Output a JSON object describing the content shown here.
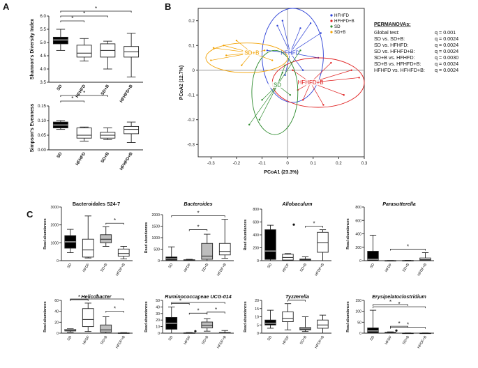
{
  "panel_letters": {
    "a": "A",
    "b": "B",
    "c": "C"
  },
  "permanova": {
    "title": "PERMANOVAs:",
    "rows": [
      {
        "label": "Global test:",
        "q": "q = 0.001"
      },
      {
        "label": "SD vs. SD+B:",
        "q": "q = 0.0024"
      },
      {
        "label": "SD vs. HFHFD:",
        "q": "q = 0.0024"
      },
      {
        "label": "SD vs. HFHFD+B:",
        "q": "q = 0.0024"
      },
      {
        "label": "SD+B vs. HFHFD:",
        "q": "q = 0.0030"
      },
      {
        "label": "SD+B vs. HFHFD+B:",
        "q": "q = 0.0024"
      },
      {
        "label": "HFHFD vs. HFHFD+B:",
        "q": "q = 0.0024"
      }
    ]
  },
  "colors": {
    "SD": "#2e8b2e",
    "SD+B": "#f2a100",
    "HFHFD": "#2a3fd6",
    "HFHFD+B": "#e02020",
    "dark": "#000000",
    "grey": "#bdbdbd",
    "white": "#ffffff"
  },
  "chart_data": [
    {
      "id": "shannon",
      "type": "box",
      "panel": "A",
      "categories": [
        "SD",
        "HFHFD",
        "SD+B",
        "HFHFD+B"
      ],
      "ylabel": "Shannon's Diversity Index",
      "xlabel": "",
      "ylim": [
        3.5,
        6.0
      ],
      "yticks": [
        "3.5",
        "4.0",
        "4.5",
        "5.0",
        "5.5",
        "6.0"
      ],
      "ytick_values": [
        3.5,
        4.0,
        4.5,
        5.0,
        5.5,
        6.0
      ],
      "fills": [
        "#000000",
        "#ffffff",
        "#ffffff",
        "#ffffff"
      ],
      "boxes": [
        {
          "min": 4.7,
          "q1": 4.95,
          "med": 5.1,
          "q3": 5.2,
          "max": 5.5
        },
        {
          "min": 4.3,
          "q1": 4.45,
          "med": 4.6,
          "q3": 4.9,
          "max": 5.15
        },
        {
          "min": 4.0,
          "q1": 4.45,
          "med": 4.7,
          "q3": 4.95,
          "max": 5.05
        },
        {
          "min": 3.7,
          "q1": 4.45,
          "med": 4.65,
          "q3": 4.85,
          "max": 5.35
        }
      ],
      "significance": [
        {
          "from": 0,
          "to": 1,
          "label": "*"
        },
        {
          "from": 0,
          "to": 2,
          "label": "*"
        },
        {
          "from": 0,
          "to": 3,
          "label": "*"
        }
      ]
    },
    {
      "id": "simpson",
      "type": "box",
      "panel": "A",
      "categories": [
        "SD",
        "HFHFD",
        "SD+B",
        "HFHFD+B"
      ],
      "ylabel": "Simpson's Evenness",
      "xlabel": "",
      "ylim": [
        0.0,
        0.15
      ],
      "yticks": [
        "0.00",
        "0.05",
        "0.10",
        "0.15"
      ],
      "ytick_values": [
        0.0,
        0.05,
        0.1,
        0.15
      ],
      "fills": [
        "#000000",
        "#ffffff",
        "#ffffff",
        "#ffffff"
      ],
      "boxes": [
        {
          "min": 0.07,
          "q1": 0.075,
          "med": 0.085,
          "q3": 0.095,
          "max": 0.1
        },
        {
          "min": 0.03,
          "q1": 0.04,
          "med": 0.05,
          "q3": 0.075,
          "max": 0.078
        },
        {
          "min": 0.035,
          "q1": 0.04,
          "med": 0.05,
          "q3": 0.06,
          "max": 0.075
        },
        {
          "min": 0.025,
          "q1": 0.055,
          "med": 0.07,
          "q3": 0.08,
          "max": 0.095
        }
      ],
      "significance": [
        {
          "from": 0,
          "to": 1,
          "label": "*"
        },
        {
          "from": 0,
          "to": 2,
          "label": "*"
        }
      ]
    },
    {
      "id": "pcoa",
      "type": "scatter",
      "panel": "B",
      "title": "",
      "xlabel": "PCoA1 (23.3%)",
      "ylabel": "PCoA2 (12.7%)",
      "xlim": [
        -0.35,
        0.3
      ],
      "ylim": [
        -0.35,
        0.25
      ],
      "xticks": [
        "-0.3",
        "-0.2",
        "-0.1",
        "0",
        "0.1",
        "0.2",
        "0.3"
      ],
      "xtick_values": [
        -0.3,
        -0.2,
        -0.1,
        0,
        0.1,
        0.2,
        0.3
      ],
      "yticks": [
        "-0.3",
        "-0.2",
        "-0.1",
        "0",
        "0.1",
        "0.2"
      ],
      "ytick_values": [
        -0.3,
        -0.2,
        -0.1,
        0,
        0.1,
        0.2
      ],
      "legend": [
        "HFHFD",
        "HFHFD+B",
        "SD",
        "SD+B"
      ],
      "series": [
        {
          "name": "HFHFD",
          "color": "#2a3fd6",
          "centroid": [
            0.01,
            0.07
          ],
          "ellipse": {
            "rx": 0.12,
            "ry": 0.19,
            "cx": 0.02,
            "cy": 0.06
          },
          "points": [
            [
              -0.04,
              0.18
            ],
            [
              -0.02,
              0.2
            ],
            [
              0.05,
              0.17
            ],
            [
              0.09,
              0.19
            ],
            [
              0.13,
              0.15
            ],
            [
              -0.08,
              0.08
            ],
            [
              0.06,
              0.0
            ],
            [
              -0.01,
              -0.02
            ],
            [
              0.12,
              0.05
            ]
          ]
        },
        {
          "name": "HFHFD+B",
          "color": "#e02020",
          "centroid": [
            0.09,
            -0.05
          ],
          "ellipse": {
            "rx": 0.18,
            "ry": 0.1,
            "cx": 0.12,
            "cy": -0.05
          },
          "points": [
            [
              0.02,
              0.0
            ],
            [
              0.06,
              -0.12
            ],
            [
              0.14,
              -0.14
            ],
            [
              0.25,
              0.0
            ],
            [
              0.28,
              -0.03
            ],
            [
              0.22,
              -0.1
            ],
            [
              0.17,
              0.03
            ],
            [
              0.04,
              -0.08
            ]
          ]
        },
        {
          "name": "SD",
          "color": "#2e8b2e",
          "centroid": [
            -0.04,
            -0.06
          ],
          "ellipse": {
            "rx": 0.09,
            "ry": 0.17,
            "cx": -0.05,
            "cy": -0.09
          },
          "points": [
            [
              -0.15,
              -0.22
            ],
            [
              -0.1,
              -0.12
            ],
            [
              -0.11,
              -0.2
            ],
            [
              -0.02,
              -0.01
            ],
            [
              -0.01,
              0.02
            ],
            [
              0.05,
              0.08
            ],
            [
              0.01,
              -0.1
            ]
          ]
        },
        {
          "name": "SD+B",
          "color": "#f2a100",
          "centroid": [
            -0.14,
            0.07
          ],
          "ellipse": {
            "rx": 0.16,
            "ry": 0.06,
            "cx": -0.16,
            "cy": 0.05
          },
          "points": [
            [
              -0.3,
              0.04
            ],
            [
              -0.29,
              0.09
            ],
            [
              -0.25,
              0.1
            ],
            [
              -0.2,
              0.12
            ],
            [
              -0.09,
              0.08
            ],
            [
              -0.06,
              0.04
            ],
            [
              -0.18,
              0.02
            ],
            [
              -0.24,
              0.06
            ]
          ]
        }
      ]
    },
    {
      "id": "bacteroidales",
      "type": "box",
      "panel": "C",
      "title": "Bacteroidales S24-7",
      "title_style": "normal",
      "categories": [
        "SD",
        "HFDF",
        "SD+B",
        "HFDF+B"
      ],
      "ylabel": "Read abundances",
      "ylim": [
        0,
        3000
      ],
      "yticks": [
        "0",
        "1000",
        "2000",
        "3000"
      ],
      "ytick_values": [
        0,
        1000,
        2000,
        3000
      ],
      "fills": [
        "#000000",
        "#ffffff",
        "#bdbdbd",
        "#ffffff"
      ],
      "boxes": [
        {
          "min": 450,
          "q1": 700,
          "med": 1050,
          "q3": 1400,
          "max": 1750
        },
        {
          "min": 150,
          "q1": 200,
          "med": 600,
          "q3": 1200,
          "max": 2500
        },
        {
          "min": 800,
          "q1": 1000,
          "med": 1200,
          "q3": 1450,
          "max": 1900
        },
        {
          "min": 100,
          "q1": 250,
          "med": 400,
          "q3": 650,
          "max": 800
        }
      ],
      "outliers": [],
      "significance": [
        {
          "from": 2,
          "to": 3,
          "label": "*"
        }
      ]
    },
    {
      "id": "bacteroides",
      "type": "box",
      "panel": "C",
      "title": "Bacteroides",
      "title_style": "italic",
      "categories": [
        "SD",
        "HFDF",
        "SD+B",
        "HFDF+B"
      ],
      "ylabel": "Read abundances",
      "ylim": [
        0,
        2000
      ],
      "yticks": [
        "0",
        "500",
        "1000",
        "1500",
        "2000"
      ],
      "ytick_values": [
        0,
        500,
        1000,
        1500,
        2000
      ],
      "fills": [
        "#000000",
        "#ffffff",
        "#bdbdbd",
        "#ffffff"
      ],
      "boxes": [
        {
          "min": 0,
          "q1": 30,
          "med": 80,
          "q3": 160,
          "max": 600
        },
        {
          "min": 0,
          "q1": 10,
          "med": 25,
          "q3": 40,
          "max": 60
        },
        {
          "min": 0,
          "q1": 60,
          "med": 200,
          "q3": 750,
          "max": 1150
        },
        {
          "min": 100,
          "q1": 250,
          "med": 400,
          "q3": 750,
          "max": 1800
        }
      ],
      "outliers": [],
      "significance": [
        {
          "from": 0,
          "to": 3,
          "label": "*"
        },
        {
          "from": 1,
          "to": 2,
          "label": "*"
        }
      ]
    },
    {
      "id": "allobaculum",
      "type": "box",
      "panel": "C",
      "title": "Allobaculum",
      "title_style": "italic",
      "categories": [
        "SD",
        "HFDF",
        "SD+B",
        "HFDF+B"
      ],
      "ylabel": "Read abundances",
      "ylim": [
        0,
        800
      ],
      "yticks": [
        "0",
        "200",
        "400",
        "600",
        "800"
      ],
      "ytick_values": [
        0,
        200,
        400,
        600,
        800
      ],
      "fills": [
        "#000000",
        "#ffffff",
        "#bdbdbd",
        "#ffffff"
      ],
      "boxes": [
        {
          "min": 0,
          "q1": 20,
          "med": 150,
          "q3": 480,
          "max": 550
        },
        {
          "min": 0,
          "q1": 10,
          "med": 50,
          "q3": 100,
          "max": 110
        },
        {
          "min": 0,
          "q1": 5,
          "med": 15,
          "q3": 25,
          "max": 60
        },
        {
          "min": 0,
          "q1": 130,
          "med": 280,
          "q3": 440,
          "max": 480
        }
      ],
      "outliers": [
        {
          "index": 1,
          "value": 560
        }
      ],
      "significance": [
        {
          "from": 2,
          "to": 3,
          "label": "*"
        }
      ]
    },
    {
      "id": "parasutterella",
      "type": "box",
      "panel": "C",
      "title": "Parasutterella",
      "title_style": "italic",
      "categories": [
        "SD",
        "HFDF",
        "SD+B",
        "HFDF+B"
      ],
      "ylabel": "Read abundances",
      "ylim": [
        0,
        800
      ],
      "yticks": [
        "0",
        "200",
        "400",
        "600",
        "800"
      ],
      "ytick_values": [
        0,
        200,
        400,
        600,
        800
      ],
      "fills": [
        "#000000",
        "#ffffff",
        "#bdbdbd",
        "#ffffff"
      ],
      "boxes": [
        {
          "min": 0,
          "q1": 0,
          "med": 20,
          "q3": 140,
          "max": 380
        },
        {
          "min": 0,
          "q1": 0,
          "med": 0,
          "q3": 2,
          "max": 3
        },
        {
          "min": 0,
          "q1": 0,
          "med": 0,
          "q3": 3,
          "max": 5
        },
        {
          "min": 0,
          "q1": 5,
          "med": 15,
          "q3": 40,
          "max": 120
        }
      ],
      "outliers": [],
      "significance": [
        {
          "from": 1,
          "to": 3,
          "label": "*"
        }
      ]
    },
    {
      "id": "helicobacter",
      "type": "box",
      "panel": "C",
      "title": "Helicobacter",
      "title_style": "italic",
      "categories": [
        "SD",
        "HFDF",
        "SD+B",
        "HFDF+B"
      ],
      "ylabel": "Read abundances",
      "ylim": [
        0,
        60
      ],
      "yticks": [
        "0",
        "20",
        "40",
        "60"
      ],
      "ytick_values": [
        0,
        20,
        40,
        60
      ],
      "fills": [
        "#000000",
        "#ffffff",
        "#bdbdbd",
        "#ffffff"
      ],
      "boxes": [
        {
          "min": 2,
          "q1": 4,
          "med": 6,
          "q3": 7,
          "max": 8
        },
        {
          "min": 3,
          "q1": 12,
          "med": 25,
          "q3": 45,
          "max": 55
        },
        {
          "min": 0,
          "q1": 2,
          "med": 6,
          "q3": 15,
          "max": 30
        },
        {
          "min": 0,
          "q1": 0,
          "med": 0,
          "q3": 0.5,
          "max": 1
        }
      ],
      "outliers": [],
      "significance": [
        {
          "from": 0,
          "to": 1,
          "label": "*"
        },
        {
          "from": 0,
          "to": 3,
          "label": "*"
        },
        {
          "from": 2,
          "to": 3,
          "label": "*"
        }
      ]
    },
    {
      "id": "ruminococcaceae",
      "type": "box",
      "panel": "C",
      "title": "Ruminococcaceae UCG-014",
      "title_style": "italic",
      "categories": [
        "SD",
        "HFDF",
        "SD+B",
        "HFDF+B"
      ],
      "ylabel": "Read abundances",
      "ylim": [
        0,
        50
      ],
      "yticks": [
        "0",
        "10",
        "20",
        "30",
        "40",
        "50"
      ],
      "ytick_values": [
        0,
        10,
        20,
        30,
        40,
        50
      ],
      "fills": [
        "#000000",
        "#ffffff",
        "#bdbdbd",
        "#ffffff"
      ],
      "boxes": [
        {
          "min": 0,
          "q1": 6,
          "med": 15,
          "q3": 24,
          "max": 40
        },
        {
          "min": 0,
          "q1": 0,
          "med": 0,
          "q3": 0.5,
          "max": 1
        },
        {
          "min": 3,
          "q1": 8,
          "med": 12,
          "q3": 17,
          "max": 22
        },
        {
          "min": 0,
          "q1": 0,
          "med": 0,
          "q3": 1,
          "max": 4
        }
      ],
      "outliers": [
        {
          "index": 1,
          "value": 3
        }
      ],
      "significance": [
        {
          "from": 0,
          "to": 1,
          "label": "*"
        },
        {
          "from": 0,
          "to": 3,
          "label": "*"
        },
        {
          "from": 1,
          "to": 2,
          "label": "*"
        },
        {
          "from": 2,
          "to": 3,
          "label": "*"
        }
      ]
    },
    {
      "id": "tyzzerella",
      "type": "box",
      "panel": "C",
      "title": "Tyzzerella",
      "title_style": "italic",
      "categories": [
        "SD",
        "HFDF",
        "SD+B",
        "HFDF+B"
      ],
      "ylabel": "Read abundances",
      "ylim": [
        0,
        20
      ],
      "yticks": [
        "0",
        "5",
        "10",
        "15",
        "20"
      ],
      "ytick_values": [
        0,
        5,
        10,
        15,
        20
      ],
      "fills": [
        "#000000",
        "#ffffff",
        "#bdbdbd",
        "#ffffff"
      ],
      "boxes": [
        {
          "min": 3,
          "q1": 5,
          "med": 6,
          "q3": 8,
          "max": 14
        },
        {
          "min": 2,
          "q1": 7,
          "med": 9,
          "q3": 13,
          "max": 18
        },
        {
          "min": 1,
          "q1": 2,
          "med": 2.5,
          "q3": 3.5,
          "max": 10
        },
        {
          "min": 0,
          "q1": 3,
          "med": 5,
          "q3": 8,
          "max": 11
        }
      ],
      "outliers": [],
      "significance": [
        {
          "from": 1,
          "to": 2,
          "label": "*"
        }
      ]
    },
    {
      "id": "erysipelatoclostridium",
      "type": "box",
      "panel": "C",
      "title": "Erysipelatoclostridium",
      "title_style": "italic",
      "categories": [
        "SD",
        "HFDF",
        "SD+B",
        "HFDF+B"
      ],
      "ylabel": "Read abundances",
      "ylim": [
        0,
        150
      ],
      "yticks": [
        "0",
        "50",
        "100",
        "150"
      ],
      "ytick_values": [
        0,
        50,
        100,
        150
      ],
      "fills": [
        "#000000",
        "#ffffff",
        "#bdbdbd",
        "#ffffff"
      ],
      "boxes": [
        {
          "min": 0,
          "q1": 2,
          "med": 10,
          "q3": 24,
          "max": 105
        },
        {
          "min": 0,
          "q1": 1,
          "med": 2,
          "q3": 4,
          "max": 6
        },
        {
          "min": 0,
          "q1": 0,
          "med": 0,
          "q3": 0.5,
          "max": 1
        },
        {
          "min": 0,
          "q1": 0,
          "med": 0,
          "q3": 0.5,
          "max": 1
        }
      ],
      "outliers": [
        {
          "index": 1,
          "value": 12
        }
      ],
      "significance": [
        {
          "from": 0,
          "to": 3,
          "label": "*"
        },
        {
          "from": 1,
          "to": 3,
          "label": "*"
        },
        {
          "from": 1,
          "to": 2,
          "label": "*"
        },
        {
          "from": 0,
          "to": 2,
          "label": "*"
        }
      ]
    }
  ]
}
